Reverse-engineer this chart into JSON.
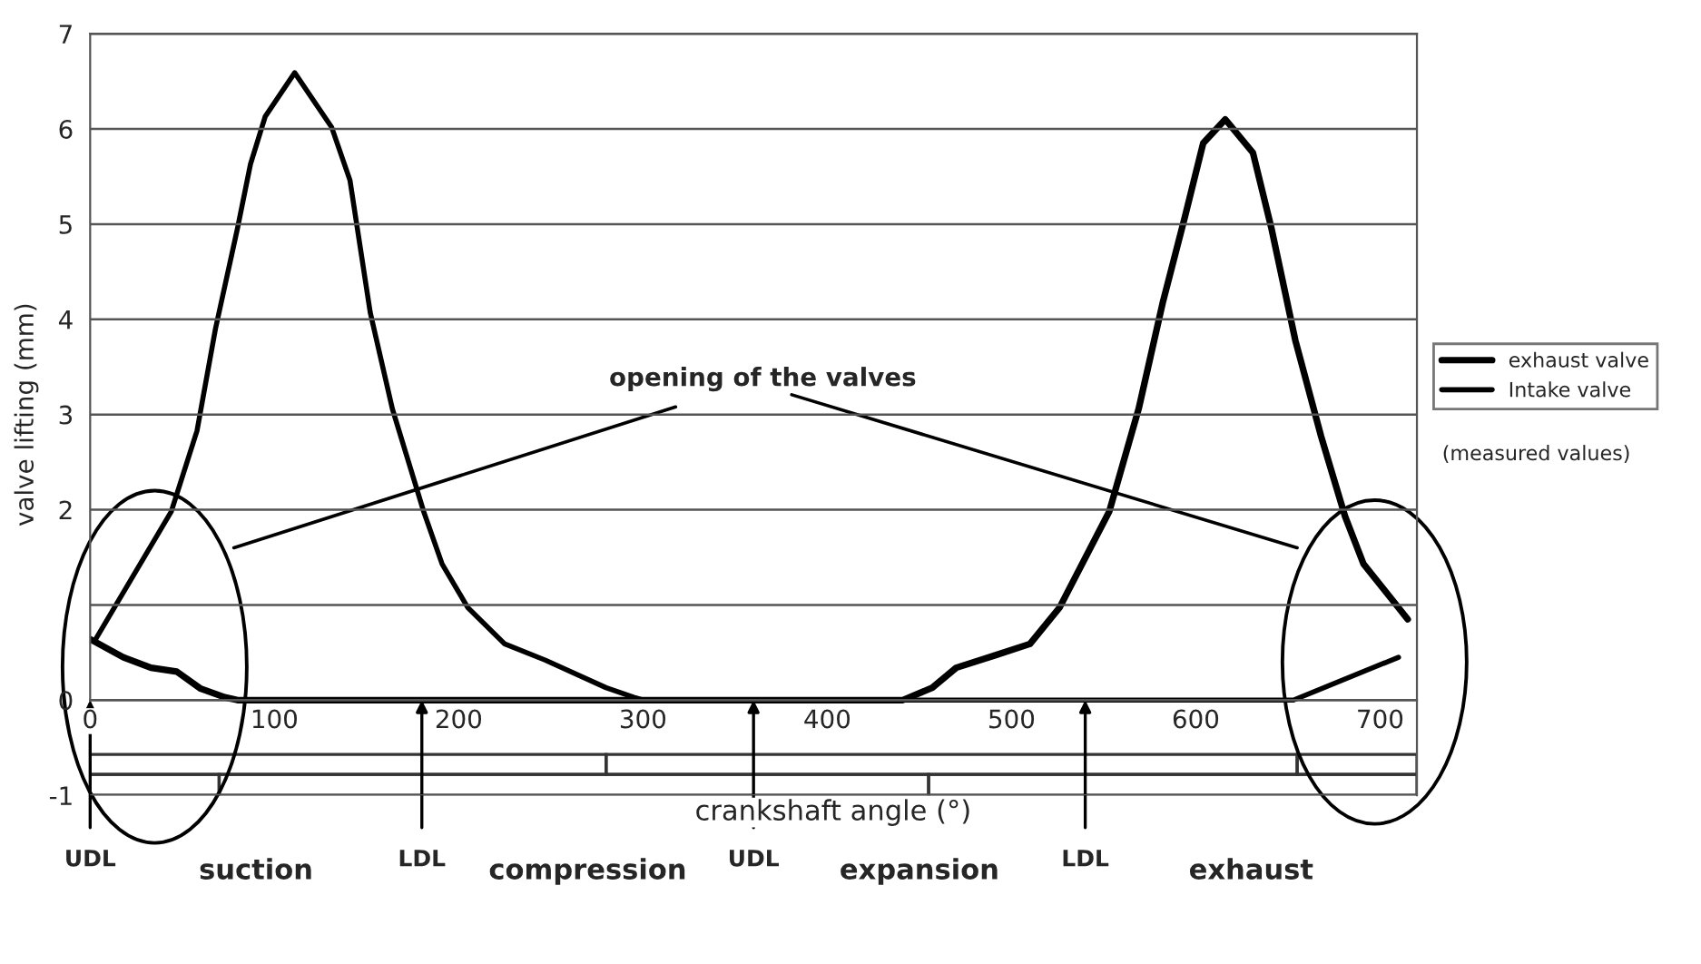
{
  "chart_data": {
    "type": "line",
    "xlabel": "crankshaft angle (°)",
    "ylabel": "valve lifting (mm)",
    "xlim": [
      0,
      720
    ],
    "xticks": [
      0,
      100,
      200,
      300,
      400,
      500,
      600,
      700
    ],
    "ylim": [
      -1,
      7
    ],
    "yticks": [
      -1,
      0,
      {
        "value": 1,
        "label": null
      },
      2,
      3,
      4,
      5,
      6,
      7
    ],
    "grid": "y",
    "legend": "right",
    "line_style": "solid",
    "marker": "none",
    "series": [
      {
        "name": "exhaust valve",
        "color": "#000000",
        "x": [
          0,
          18,
          33,
          47,
          60,
          73,
          80,
          200,
          300,
          441,
          457,
          470,
          491,
          510,
          526,
          553,
          569,
          582,
          594,
          604,
          616,
          631,
          641,
          654,
          668,
          681,
          691,
          715
        ],
        "values": [
          0.64,
          0.45,
          0.34,
          0.3,
          0.12,
          0.03,
          0,
          0,
          0,
          0,
          0.13,
          0.34,
          0.47,
          0.59,
          0.97,
          1.98,
          3.06,
          4.17,
          5.07,
          5.85,
          6.1,
          5.75,
          4.96,
          3.78,
          2.77,
          1.93,
          1.43,
          0.85
        ]
      },
      {
        "name": "Intake valve",
        "color": "#000000",
        "x": [
          3,
          44,
          58,
          68,
          80,
          87,
          95,
          111,
          131,
          141,
          152,
          164,
          181,
          191,
          205,
          225,
          247,
          280,
          295,
          300,
          500,
          653,
          710
        ],
        "values": [
          0.64,
          1.98,
          2.83,
          3.9,
          4.96,
          5.63,
          6.13,
          6.59,
          6.02,
          5.46,
          4.07,
          3.06,
          1.98,
          1.43,
          0.97,
          0.59,
          0.42,
          0.13,
          0.03,
          0,
          0,
          0,
          0.45
        ]
      }
    ],
    "annotations": [
      "opening of the valves",
      "(measured values)",
      "UDL",
      "suction",
      {
        "text": "LDL",
        "x": 180,
        "y": 0
      },
      "compression",
      {
        "text": "UDL",
        "x": 360,
        "y": 0
      },
      "expansion",
      {
        "text": "LDL",
        "x": 540,
        "y": 0
      },
      "exhaust"
    ]
  }
}
